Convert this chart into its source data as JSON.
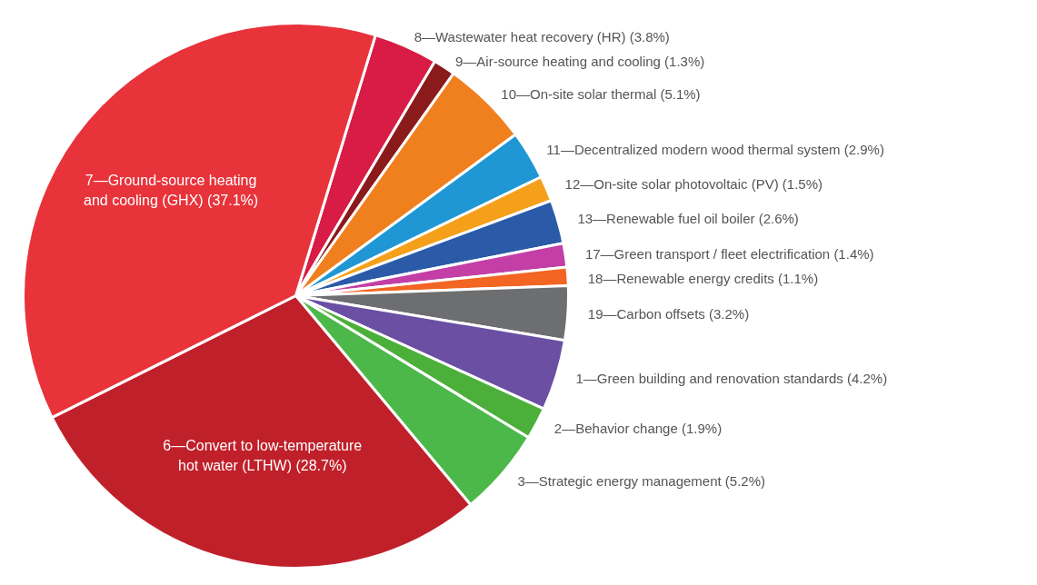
{
  "chart_data": {
    "type": "pie",
    "categories": [
      "8—Wastewater heat recovery (HR)",
      "9—Air-source heating and cooling",
      "10—On-site solar thermal",
      "11—Decentralized modern wood thermal system",
      "12—On-site solar photovoltaic (PV)",
      "13—Renewable fuel oil boiler",
      "17—Green transport / fleet electrification",
      "18—Renewable energy credits",
      "19—Carbon offsets",
      "1—Green building and renovation standards",
      "2—Behavior change",
      "3—Strategic energy management",
      "6—Convert to low-temperature hot water (LTHW)",
      "7—Ground-source heating and cooling (GHX)"
    ],
    "values": [
      3.8,
      1.3,
      5.1,
      2.9,
      1.5,
      2.6,
      1.4,
      1.1,
      3.2,
      4.2,
      1.9,
      5.2,
      28.7,
      37.1
    ],
    "value_labels": [
      "(3.8%)",
      "(1.3%)",
      "(5.1%)",
      "(2.9%)",
      "(1.5%)",
      "(2.6%)",
      "(1.4%)",
      "(1.1%)",
      "(3.2%)",
      "(4.2%)",
      "(1.9%)",
      "(5.2%)",
      "(28.7%)",
      "(37.1%)"
    ],
    "colors": [
      "#d81c45",
      "#8b1a1a",
      "#f07f1e",
      "#1f97d4",
      "#f5a01a",
      "#2b5aa8",
      "#c33fa5",
      "#f26522",
      "#6d6e70",
      "#6a4fa3",
      "#4caf3a",
      "#4cb84a",
      "#c0202a",
      "#e8333b"
    ]
  }
}
